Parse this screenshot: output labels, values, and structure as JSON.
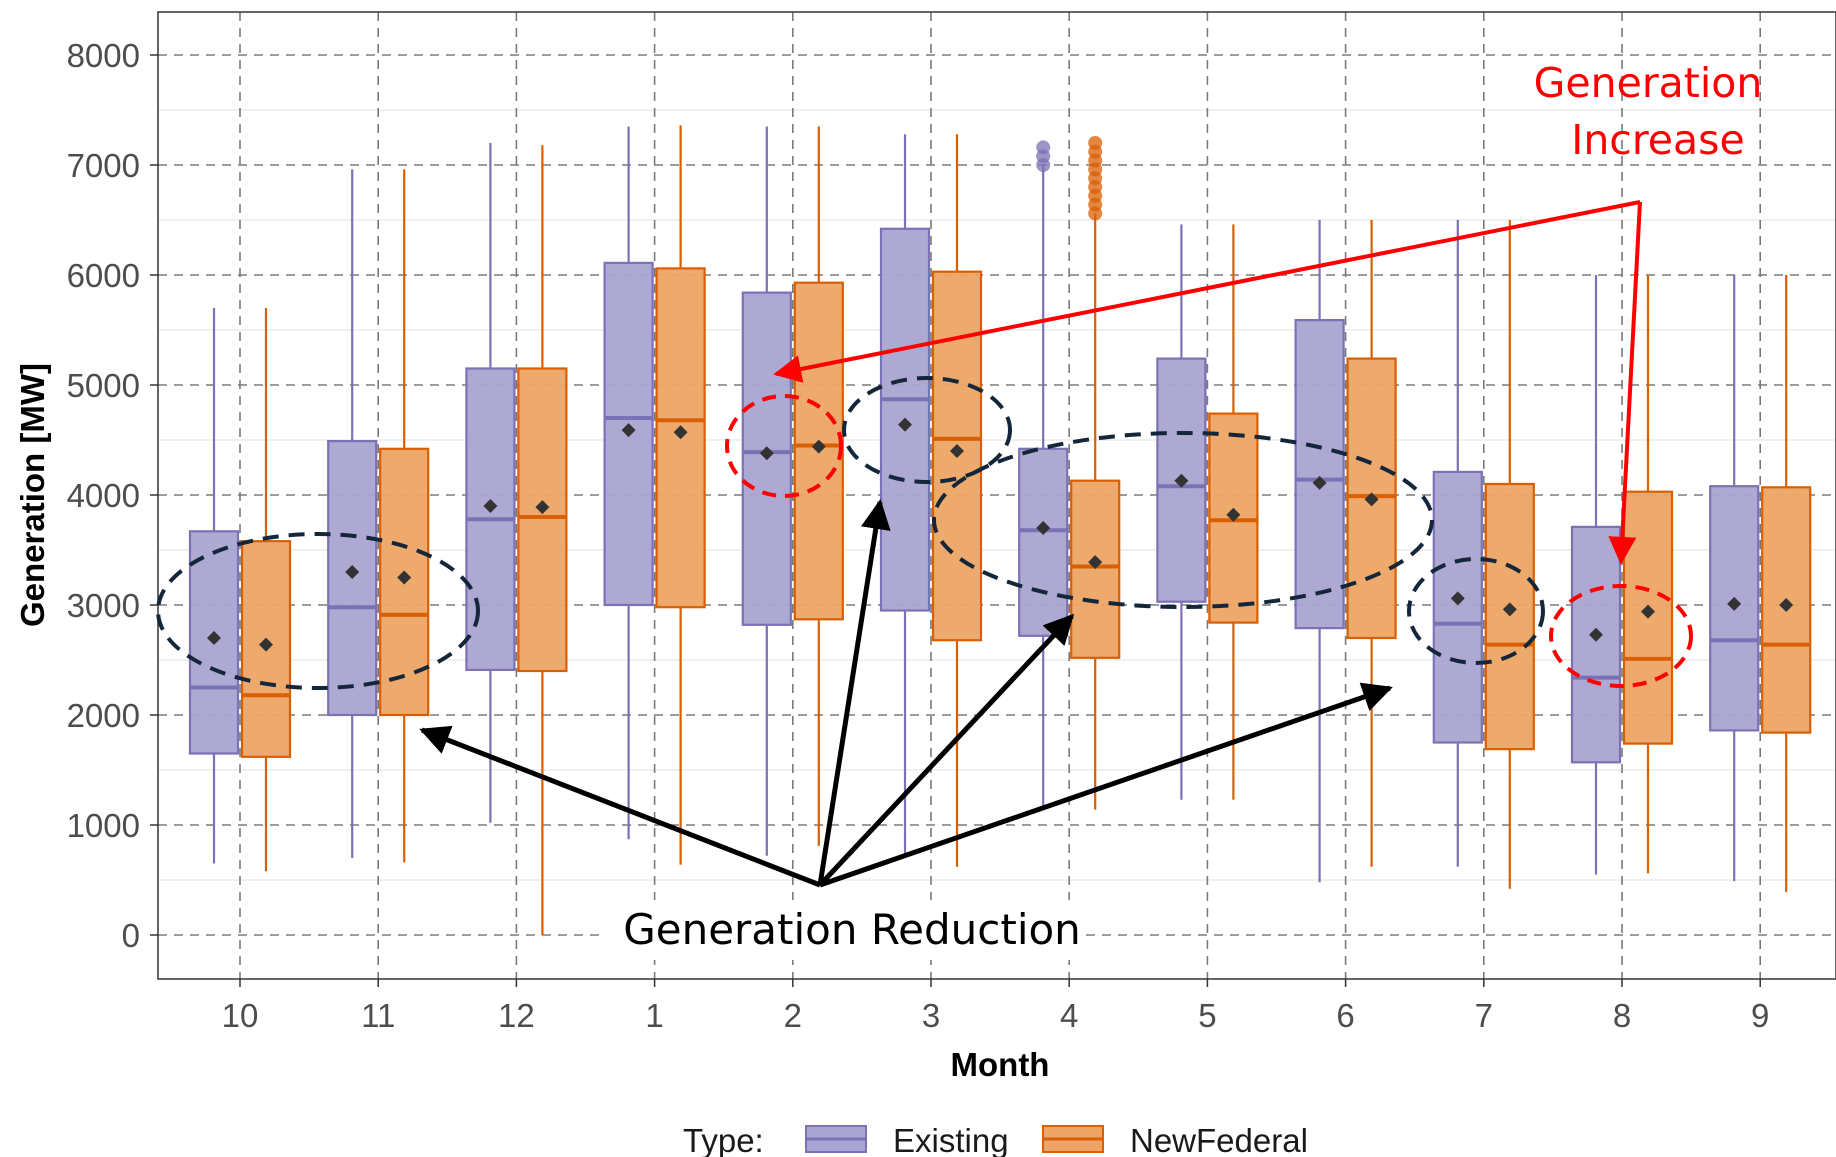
{
  "chart_data": {
    "type": "boxplot",
    "xlabel": "Month",
    "ylabel": "Generation [MW]",
    "ylim": [
      -380,
      8400
    ],
    "y_ticks": [
      "0",
      "1000",
      "2000",
      "3000",
      "4000",
      "5000",
      "6000",
      "7000",
      "8000"
    ],
    "categories": [
      "10",
      "11",
      "12",
      "1",
      "2",
      "3",
      "4",
      "5",
      "6",
      "7",
      "8",
      "9"
    ],
    "legend": {
      "title": "Type:",
      "placement": "bottom"
    },
    "series": [
      {
        "name": "Existing",
        "color": "#7b72b6",
        "fill": "#a9a4d1",
        "boxes": [
          {
            "min": 650,
            "q1": 1650,
            "median": 2250,
            "q3": 3670,
            "max": 5700,
            "mean": 2700
          },
          {
            "min": 700,
            "q1": 2000,
            "median": 2980,
            "q3": 4490,
            "max": 6960,
            "mean": 3300
          },
          {
            "min": 1020,
            "q1": 2410,
            "median": 3780,
            "q3": 5150,
            "max": 7200,
            "mean": 3900
          },
          {
            "min": 870,
            "q1": 3000,
            "median": 4700,
            "q3": 6110,
            "max": 7350,
            "mean": 4590
          },
          {
            "min": 720,
            "q1": 2820,
            "median": 4390,
            "q3": 5840,
            "max": 7350,
            "mean": 4380
          },
          {
            "min": 740,
            "q1": 2950,
            "median": 4870,
            "q3": 6420,
            "max": 7280,
            "mean": 4640
          },
          {
            "min": 1160,
            "q1": 2720,
            "median": 3680,
            "q3": 4420,
            "max": 7000,
            "mean": 3700
          },
          {
            "min": 1230,
            "q1": 3030,
            "median": 4080,
            "q3": 5240,
            "max": 6460,
            "mean": 4130
          },
          {
            "min": 480,
            "q1": 2790,
            "median": 4140,
            "q3": 5590,
            "max": 6500,
            "mean": 4110
          },
          {
            "min": 620,
            "q1": 1750,
            "median": 2830,
            "q3": 4210,
            "max": 6500,
            "mean": 3060
          },
          {
            "min": 550,
            "q1": 1570,
            "median": 2340,
            "q3": 3710,
            "max": 6000,
            "mean": 2730
          },
          {
            "min": 490,
            "q1": 1860,
            "median": 2680,
            "q3": 4080,
            "max": 6000,
            "mean": 3010
          }
        ],
        "outliers": [
          {
            "category": "4",
            "from": 7000,
            "to": 7220
          }
        ]
      },
      {
        "name": "NewFederal",
        "color": "#d95f02",
        "fill": "#eda465",
        "boxes": [
          {
            "min": 580,
            "q1": 1620,
            "median": 2180,
            "q3": 3580,
            "max": 5700,
            "mean": 2640
          },
          {
            "min": 660,
            "q1": 2000,
            "median": 2910,
            "q3": 4420,
            "max": 6960,
            "mean": 3250
          },
          {
            "min": 0,
            "q1": 2400,
            "median": 3800,
            "q3": 5150,
            "max": 7180,
            "mean": 3890
          },
          {
            "min": 640,
            "q1": 2980,
            "median": 4680,
            "q3": 6060,
            "max": 7360,
            "mean": 4570
          },
          {
            "min": 810,
            "q1": 2870,
            "median": 4450,
            "q3": 5930,
            "max": 7350,
            "mean": 4440
          },
          {
            "min": 620,
            "q1": 2680,
            "median": 4510,
            "q3": 6030,
            "max": 7280,
            "mean": 4400
          },
          {
            "min": 1140,
            "q1": 2520,
            "median": 3350,
            "q3": 4130,
            "max": 6560,
            "mean": 3390
          },
          {
            "min": 1230,
            "q1": 2840,
            "median": 3770,
            "q3": 4740,
            "max": 6460,
            "mean": 3820
          },
          {
            "min": 620,
            "q1": 2700,
            "median": 3990,
            "q3": 5240,
            "max": 6500,
            "mean": 3960
          },
          {
            "min": 420,
            "q1": 1690,
            "median": 2640,
            "q3": 4100,
            "max": 6500,
            "mean": 2960
          },
          {
            "min": 560,
            "q1": 1740,
            "median": 2510,
            "q3": 4030,
            "max": 6000,
            "mean": 2940
          },
          {
            "min": 390,
            "q1": 1840,
            "median": 2640,
            "q3": 4070,
            "max": 6000,
            "mean": 3000
          }
        ],
        "outliers": [
          {
            "category": "4",
            "from": 6560,
            "to": 7220
          }
        ]
      }
    ],
    "annotations": {
      "increase_line1": "Generation",
      "increase_line2": "Increase",
      "reduction": "Generation Reduction"
    }
  }
}
